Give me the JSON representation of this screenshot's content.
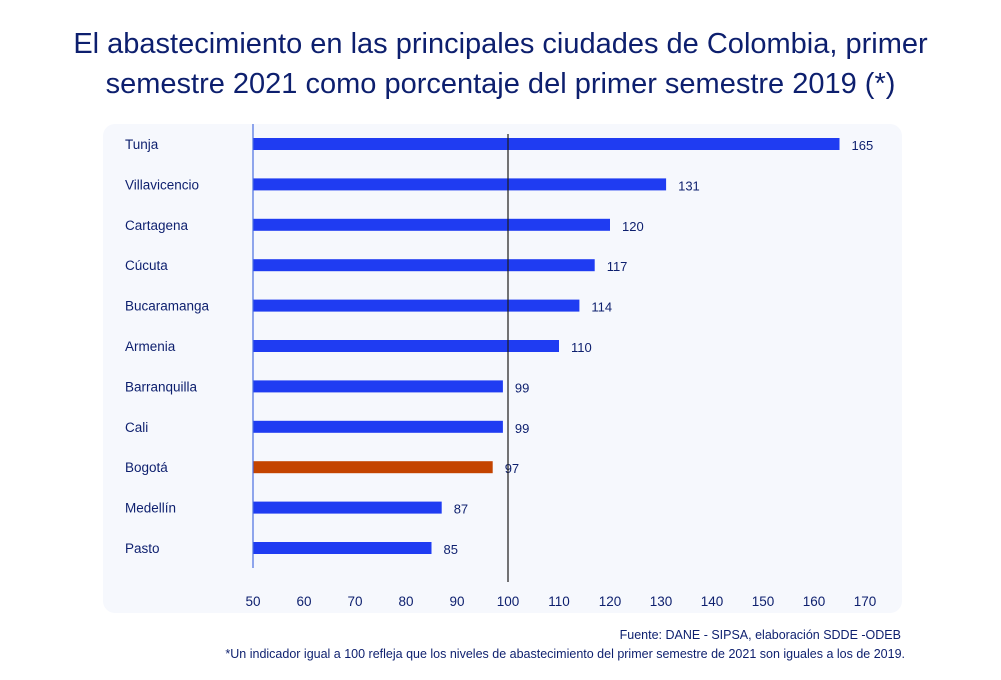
{
  "chart_data": {
    "type": "bar",
    "orientation": "horizontal",
    "title_lines": [
      "El abastecimiento en las principales ciudades de Colombia, primer",
      "semestre 2021 como porcentaje del primer semestre 2019 (*)"
    ],
    "categories": [
      "Tunja",
      "Villavicencio",
      "Cartagena",
      "Cúcuta",
      "Bucaramanga",
      "Armenia",
      "Barranquilla",
      "Cali",
      "Bogotá",
      "Medellín",
      "Pasto"
    ],
    "values": [
      165,
      131,
      120,
      117,
      114,
      110,
      99,
      99,
      97,
      87,
      85
    ],
    "value_labels": [
      "165",
      "131",
      "120",
      "117",
      "114",
      "110",
      "99",
      "99",
      "97",
      "87",
      "85"
    ],
    "highlight": "Bogotá",
    "colors": {
      "default": "#1f3cf2",
      "highlight": "#c44400",
      "reference_line": "#1a1a1a",
      "axis_line": "#4a6ee0"
    },
    "xlim": [
      50,
      170
    ],
    "xticks": [
      "50",
      "60",
      "70",
      "80",
      "90",
      "100",
      "110",
      "120",
      "130",
      "140",
      "150",
      "160",
      "170"
    ],
    "reference_value": 100,
    "xlabel": "",
    "ylabel": "",
    "grid": false,
    "legend": "none"
  },
  "footer": {
    "source": "Fuente: DANE - SIPSA, elaboración SDDE -ODEB",
    "note": "*Un indicador igual a 100 refleja que los niveles de abastecimiento del primer semestre de 2021 son iguales a los de 2019."
  }
}
